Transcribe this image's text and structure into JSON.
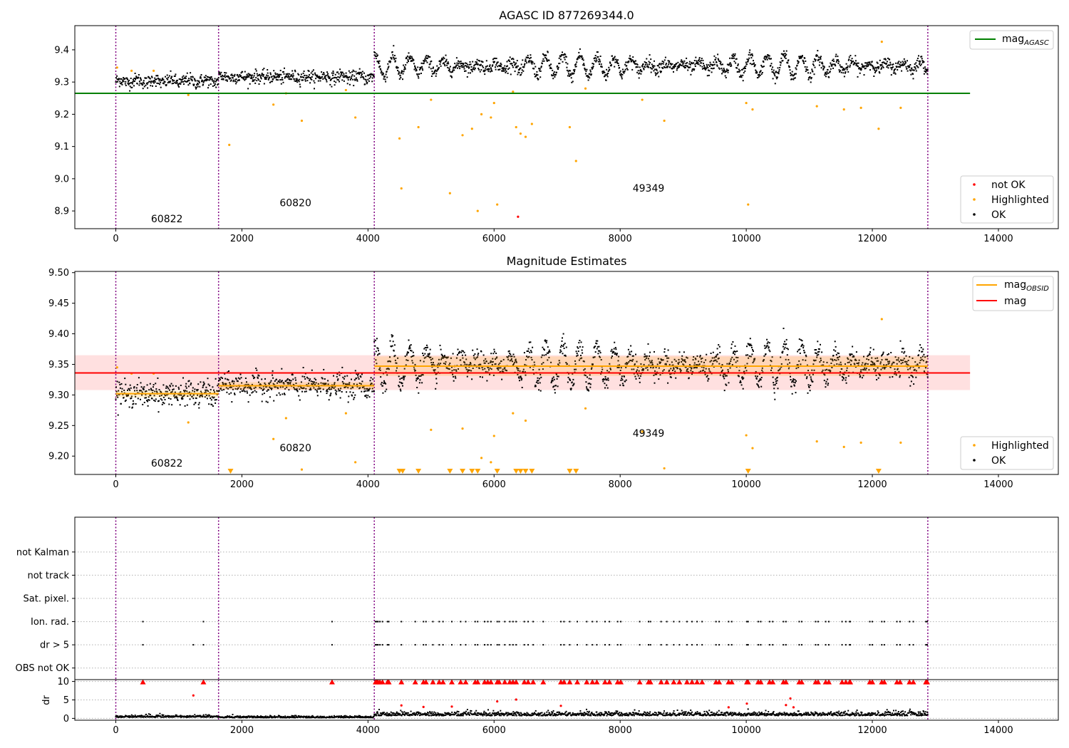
{
  "chart_data": [
    {
      "type": "scatter",
      "title": "AGASC ID 877269344.0",
      "xlim": [
        -650,
        14950
      ],
      "ylim": [
        8.845,
        9.475
      ],
      "xticks": [
        0,
        2000,
        4000,
        6000,
        8000,
        10000,
        12000,
        14000
      ],
      "yticks": [
        8.9,
        9.0,
        9.1,
        9.2,
        9.3,
        9.4
      ],
      "obs_boundaries": [
        0,
        1630,
        4100,
        12880
      ],
      "annotations": [
        {
          "text": "60822",
          "x": 810,
          "y": 8.865
        },
        {
          "text": "60820",
          "x": 2850,
          "y": 8.915
        },
        {
          "text": "49349",
          "x": 8450,
          "y": 8.96
        }
      ],
      "lines": [
        {
          "name": "mag$_{AGASC}$",
          "label_main": "mag",
          "label_sub": "AGASC",
          "color": "#008000",
          "y": 9.265,
          "x": [
            -650,
            13550
          ]
        }
      ],
      "series": [
        {
          "name": "not OK",
          "color": "#ff0000",
          "points": [
            [
              6380,
              8.882
            ]
          ]
        },
        {
          "name": "Highlighted",
          "color": "#ffa500",
          "points": [
            [
              20,
              9.345
            ],
            [
              250,
              9.335
            ],
            [
              600,
              9.335
            ],
            [
              1150,
              9.26
            ],
            [
              1800,
              9.105
            ],
            [
              2500,
              9.23
            ],
            [
              2700,
              9.265
            ],
            [
              2950,
              9.18
            ],
            [
              3650,
              9.275
            ],
            [
              3800,
              9.19
            ],
            [
              4500,
              9.125
            ],
            [
              4530,
              8.97
            ],
            [
              4800,
              9.16
            ],
            [
              5000,
              9.245
            ],
            [
              5300,
              8.955
            ],
            [
              5500,
              9.135
            ],
            [
              5650,
              9.155
            ],
            [
              5740,
              8.9
            ],
            [
              5800,
              9.2
            ],
            [
              5950,
              9.19
            ],
            [
              6000,
              9.235
            ],
            [
              6050,
              8.92
            ],
            [
              6300,
              9.27
            ],
            [
              6350,
              9.16
            ],
            [
              6420,
              9.14
            ],
            [
              6500,
              9.13
            ],
            [
              6600,
              9.17
            ],
            [
              7200,
              9.16
            ],
            [
              7300,
              9.055
            ],
            [
              7450,
              9.28
            ],
            [
              8350,
              9.245
            ],
            [
              8700,
              9.18
            ],
            [
              10000,
              9.235
            ],
            [
              10030,
              8.92
            ],
            [
              10100,
              9.215
            ],
            [
              11120,
              9.225
            ],
            [
              11550,
              9.215
            ],
            [
              11820,
              9.22
            ],
            [
              12100,
              9.155
            ],
            [
              12150,
              9.425
            ],
            [
              12450,
              9.22
            ]
          ]
        },
        {
          "name": "OK",
          "color": "#000000",
          "segments": [
            {
              "x0": 0,
              "x1": 1630,
              "mean": 9.303,
              "spread": 0.02,
              "amp": 0.006
            },
            {
              "x0": 1630,
              "x1": 4100,
              "mean": 9.316,
              "spread": 0.02,
              "amp": 0.006
            },
            {
              "x0": 4100,
              "x1": 12880,
              "mean": 9.35,
              "spread": 0.02,
              "amp": 0.035
            }
          ]
        }
      ],
      "legends": [
        {
          "position": "upper right",
          "entries": [
            "mag$_{AGASC}$"
          ]
        },
        {
          "position": "lower right",
          "entries": [
            "not OK",
            "Highlighted",
            "OK"
          ]
        }
      ]
    },
    {
      "type": "scatter",
      "title": "Magnitude Estimates",
      "xlim": [
        -650,
        14950
      ],
      "ylim": [
        9.17,
        9.502
      ],
      "xticks": [
        0,
        2000,
        4000,
        6000,
        8000,
        10000,
        12000,
        14000
      ],
      "yticks": [
        9.2,
        9.25,
        9.3,
        9.35,
        9.4,
        9.45,
        9.5
      ],
      "obs_boundaries": [
        0,
        1630,
        4100,
        12880
      ],
      "annotations": [
        {
          "text": "60822",
          "x": 810,
          "y": 9.183
        },
        {
          "text": "60820",
          "x": 2850,
          "y": 9.208
        },
        {
          "text": "49349",
          "x": 8450,
          "y": 9.232
        }
      ],
      "band": {
        "x": [
          -650,
          13550
        ],
        "y": [
          9.308,
          9.365
        ],
        "color": "#ff0000",
        "opacity": 0.12
      },
      "obsid_bands": [
        {
          "x0": 0,
          "x1": 1630,
          "y0": 9.296,
          "y1": 9.307
        },
        {
          "x0": 1630,
          "x1": 4100,
          "y0": 9.309,
          "y1": 9.321
        },
        {
          "x0": 4100,
          "x1": 12880,
          "y0": 9.331,
          "y1": 9.363
        }
      ],
      "lines": [
        {
          "name": "mag$_{OBSID}$",
          "label_main": "mag",
          "label_sub": "OBSID",
          "color": "#ffa500",
          "steps": [
            {
              "x0": 0,
              "x1": 1630,
              "y": 9.302
            },
            {
              "x0": 1630,
              "x1": 4100,
              "y": 9.315
            },
            {
              "x0": 4100,
              "x1": 12880,
              "y": 9.347
            }
          ]
        },
        {
          "name": "mag",
          "label_main": "mag",
          "label_sub": "",
          "color": "#ff0000",
          "y": 9.336,
          "x": [
            -650,
            13550
          ]
        }
      ],
      "series": [
        {
          "name": "Highlighted",
          "color": "#ffa500",
          "points": [
            [
              20,
              9.345
            ],
            [
              250,
              9.335
            ],
            [
              600,
              9.335
            ],
            [
              1150,
              9.255
            ],
            [
              2500,
              9.228
            ],
            [
              2700,
              9.262
            ],
            [
              2950,
              9.178
            ],
            [
              3650,
              9.27
            ],
            [
              3800,
              9.19
            ],
            [
              5000,
              9.243
            ],
            [
              5500,
              9.245
            ],
            [
              5800,
              9.197
            ],
            [
              5950,
              9.19
            ],
            [
              6000,
              9.233
            ],
            [
              6300,
              9.27
            ],
            [
              6500,
              9.258
            ],
            [
              7450,
              9.278
            ],
            [
              8350,
              9.24
            ],
            [
              8700,
              9.18
            ],
            [
              10000,
              9.234
            ],
            [
              10100,
              9.213
            ],
            [
              11120,
              9.224
            ],
            [
              11550,
              9.215
            ],
            [
              11820,
              9.222
            ],
            [
              12150,
              9.424
            ],
            [
              12450,
              9.222
            ]
          ]
        },
        {
          "name": "Highlighted (below range)",
          "color": "#ffa500",
          "marker": "triangle-down",
          "x": [
            1820,
            4500,
            4550,
            4800,
            5300,
            5500,
            5650,
            5740,
            6050,
            6350,
            6420,
            6500,
            6600,
            7200,
            7300,
            10030,
            12100
          ]
        },
        {
          "name": "OK",
          "color": "#000000",
          "segments": [
            {
              "x0": 0,
              "x1": 1630,
              "mean": 9.302,
              "spread": 0.02,
              "amp": 0.006
            },
            {
              "x0": 1630,
              "x1": 4100,
              "mean": 9.315,
              "spread": 0.02,
              "amp": 0.006
            },
            {
              "x0": 4100,
              "x1": 12880,
              "mean": 9.349,
              "spread": 0.02,
              "amp": 0.035
            }
          ]
        }
      ],
      "legends": [
        {
          "position": "upper right",
          "entries": [
            "mag$_{OBSID}$",
            "mag"
          ]
        },
        {
          "position": "lower right",
          "entries": [
            "Highlighted",
            "OK"
          ]
        }
      ]
    },
    {
      "type": "scatter",
      "title": "",
      "xlim": [
        -650,
        14950
      ],
      "ylim": [
        -0.5,
        6.5
      ],
      "yticks": [
        0,
        1,
        2,
        3,
        4,
        5
      ],
      "ytick_labels": [
        "OBS not OK",
        "dr > 5",
        "Ion. rad.",
        "Sat. pixel.",
        "not track",
        "not Kalman"
      ],
      "grid": "horizontal dotted",
      "obs_boundaries": [
        0,
        1630,
        4100,
        12880
      ],
      "flags": {
        "ion_rad": [
          430,
          1390,
          3430,
          4120,
          4140,
          4160,
          4190,
          4230,
          4310,
          4330,
          4530,
          4750,
          4880,
          4920,
          5030,
          5130,
          5190,
          5330,
          5470,
          5550,
          5700,
          5740,
          5850,
          5900,
          5950,
          6050,
          6080,
          6170,
          6250,
          6300,
          6350,
          6480,
          6540,
          6620,
          6780,
          7060,
          7110,
          7200,
          7320,
          7470,
          7560,
          7630,
          7760,
          7830,
          7960,
          8010,
          8310,
          8450,
          8480,
          8650,
          8740,
          8850,
          8940,
          9060,
          9140,
          9220,
          9300,
          9520,
          9570,
          9720,
          9770,
          10010,
          10030,
          10190,
          10230,
          10370,
          10420,
          10590,
          10630,
          10840,
          10880,
          11100,
          11140,
          11260,
          11310,
          11520,
          11580,
          11640,
          11650,
          11960,
          12000,
          12150,
          12190,
          12390,
          12440,
          12590,
          12650,
          12850,
          12870
        ],
        "dr_gt_5": [
          430,
          1230,
          1390,
          3430,
          4120,
          4140,
          4160,
          4190,
          4230,
          4310,
          4330,
          4530,
          4750,
          4880,
          4920,
          5030,
          5130,
          5190,
          5330,
          5470,
          5550,
          5700,
          5740,
          5850,
          5900,
          5950,
          6050,
          6080,
          6170,
          6250,
          6300,
          6350,
          6480,
          6540,
          6620,
          6780,
          7060,
          7110,
          7200,
          7320,
          7470,
          7560,
          7630,
          7760,
          7830,
          7960,
          8010,
          8310,
          8450,
          8480,
          8650,
          8740,
          8850,
          8940,
          9060,
          9140,
          9220,
          9300,
          9520,
          9570,
          9720,
          9770,
          10010,
          10030,
          10190,
          10230,
          10370,
          10420,
          10590,
          10630,
          10840,
          10880,
          11100,
          11140,
          11260,
          11310,
          11520,
          11580,
          11640,
          11650,
          11960,
          12000,
          12150,
          12190,
          12390,
          12440,
          12590,
          12650,
          12850,
          12870
        ]
      }
    },
    {
      "type": "scatter",
      "title": "",
      "ylabel": "dr",
      "xlim": [
        -650,
        14950
      ],
      "ylim": [
        -0.5,
        10.5
      ],
      "xticks": [
        0,
        2000,
        4000,
        6000,
        8000,
        10000,
        12000,
        14000
      ],
      "yticks": [
        0,
        5,
        10
      ],
      "grid": "horizontal dotted",
      "obs_boundaries": [
        0,
        1630,
        4100,
        12880
      ],
      "series": [
        {
          "name": "dr",
          "color": "#000000",
          "segments": [
            {
              "x0": 0,
              "x1": 1630,
              "mean": 0.45,
              "spread": 0.5
            },
            {
              "x0": 1630,
              "x1": 4100,
              "mean": 0.3,
              "spread": 0.4
            },
            {
              "x0": 4100,
              "x1": 12880,
              "mean": 1.0,
              "spread": 0.9
            }
          ]
        },
        {
          "name": "dr > 5 (clipped)",
          "color": "#ff0000",
          "points": [
            [
              1230,
              6.2
            ],
            [
              4530,
              3.5
            ],
            [
              4880,
              3.1
            ],
            [
              5330,
              3.2
            ],
            [
              6050,
              4.6
            ],
            [
              6350,
              5.1
            ],
            [
              7060,
              3.4
            ],
            [
              9720,
              3.0
            ],
            [
              10010,
              4.0
            ],
            [
              10630,
              3.6
            ],
            [
              10700,
              5.4
            ],
            [
              10750,
              3.0
            ]
          ]
        },
        {
          "name": "dr >= 10",
          "color": "#ff0000",
          "marker": "triangle-up",
          "x": [
            430,
            1390,
            3430,
            4120,
            4140,
            4160,
            4190,
            4230,
            4310,
            4330,
            4530,
            4750,
            4880,
            4920,
            5030,
            5130,
            5190,
            5330,
            5470,
            5550,
            5700,
            5740,
            5850,
            5900,
            5950,
            6050,
            6080,
            6170,
            6250,
            6300,
            6350,
            6480,
            6540,
            6620,
            6780,
            7060,
            7110,
            7200,
            7320,
            7470,
            7560,
            7630,
            7760,
            7830,
            7960,
            8010,
            8310,
            8450,
            8480,
            8650,
            8740,
            8850,
            8940,
            9060,
            9140,
            9220,
            9300,
            9520,
            9570,
            9720,
            9770,
            10010,
            10030,
            10190,
            10230,
            10370,
            10420,
            10590,
            10630,
            10840,
            10880,
            11100,
            11140,
            11260,
            11310,
            11520,
            11580,
            11640,
            11650,
            11960,
            12000,
            12150,
            12190,
            12390,
            12440,
            12590,
            12650,
            12850,
            12870
          ]
        }
      ]
    }
  ],
  "colors": {
    "ok": "#000000",
    "highlighted": "#ffa500",
    "not_ok": "#ff0000",
    "agasc_line": "#008000",
    "mag_line": "#ff0000",
    "obsid_line": "#ffa500",
    "obs_boundary": "#800080",
    "grid": "#b0b0b0"
  }
}
